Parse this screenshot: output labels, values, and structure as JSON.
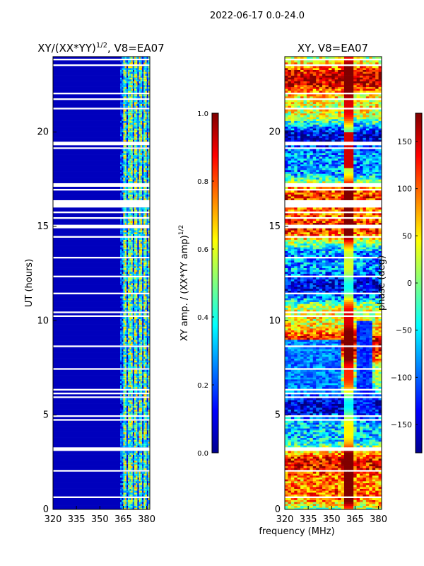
{
  "figure": {
    "suptitle": "2022-06-17 0.0-24.0",
    "xlabel": "frequency (MHz)"
  },
  "chart_data": [
    {
      "type": "heatmap",
      "title_main": "XY/(XX*YY)",
      "title_sup": "1/2",
      "title_tail": ", V8=EA07",
      "ylabel": "UT (hours)",
      "xlim": [
        320,
        382
      ],
      "ylim": [
        0,
        24
      ],
      "xticks": [
        320,
        335,
        350,
        365,
        380
      ],
      "yticks": [
        0,
        5,
        10,
        15,
        20
      ],
      "colormap": "jet",
      "colorbar": {
        "label_main": "XY amp. / (XX*YY amp)",
        "label_sup": "1/2",
        "range": [
          0.0,
          1.0
        ],
        "ticks": [
          "0.0",
          "0.2",
          "0.4",
          "0.6",
          "0.8",
          "1.0"
        ]
      },
      "description_values": {
        "background_normalized_amp": 0.05,
        "bright_band_mhz": [
          362,
          382
        ],
        "bright_band_amp": 0.5
      }
    },
    {
      "type": "heatmap",
      "title": "XY, V8=EA07",
      "ylabel": "",
      "xlim": [
        320,
        382
      ],
      "ylim": [
        0,
        24
      ],
      "xticks": [
        320,
        335,
        350,
        365,
        380
      ],
      "yticks": [
        0,
        5,
        10,
        15,
        20
      ],
      "colormap": "jet",
      "colorbar": {
        "label": "phase (deg)",
        "range": [
          -180,
          180
        ],
        "ticks": [
          "150",
          "100",
          "50",
          "0",
          "−50",
          "−100",
          "−150"
        ]
      }
    }
  ],
  "colors": {
    "jet_dark_blue": "#00008f",
    "jet_blue": "#0000ff",
    "jet_cyan": "#00ffff",
    "jet_yellow": "#ffff00",
    "jet_red": "#ff0000",
    "jet_dark_red": "#800000"
  }
}
